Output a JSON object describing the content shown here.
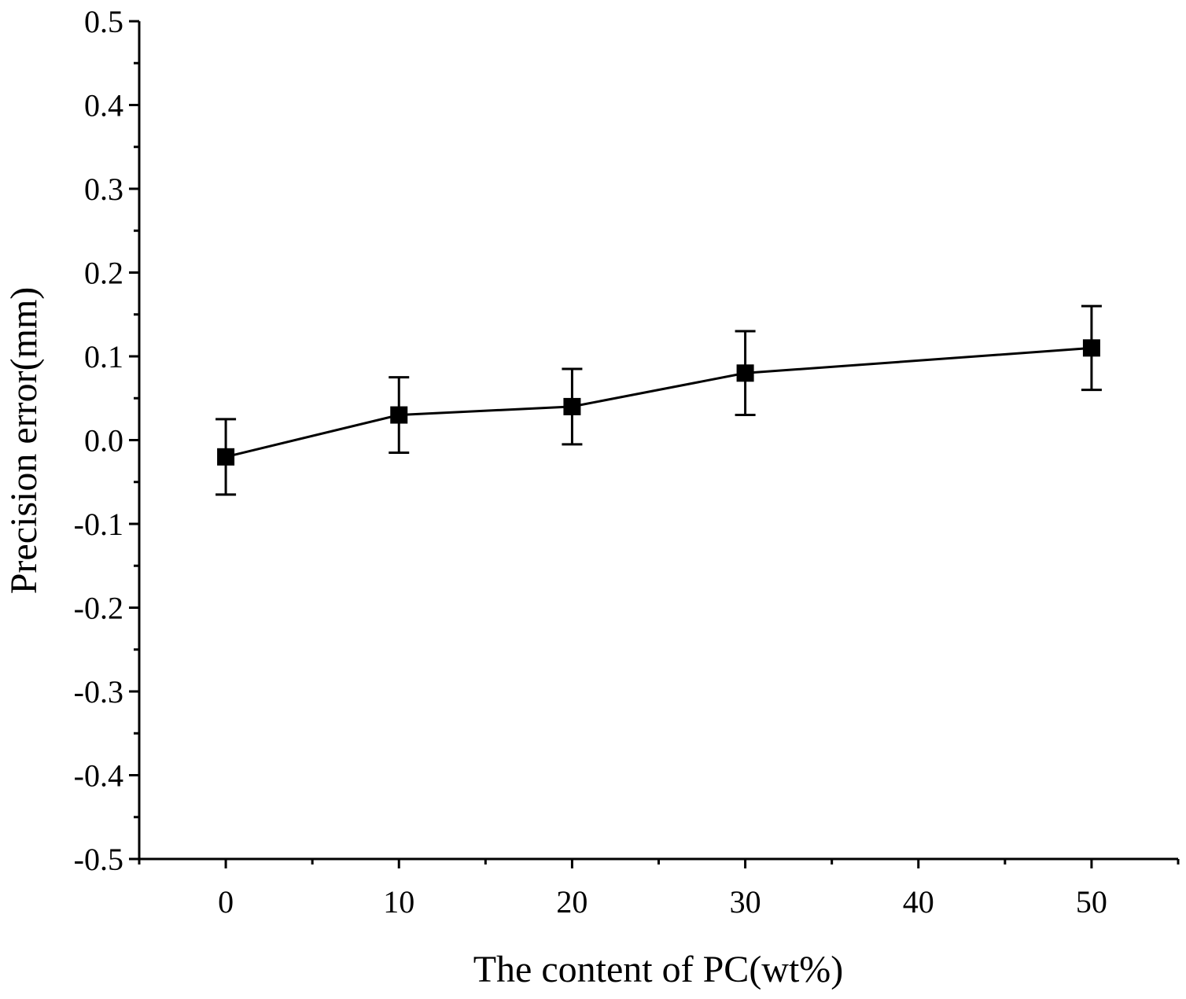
{
  "chart_data": {
    "type": "line",
    "title": "",
    "xlabel": "The content of PC(wt%)",
    "ylabel": "Precision error(mm)",
    "xlim": [
      -5,
      55
    ],
    "ylim": [
      -0.5,
      0.5
    ],
    "x_major_ticks": [
      0,
      10,
      20,
      30,
      40,
      50
    ],
    "x_minor_ticks": [
      -5,
      5,
      15,
      25,
      35,
      45,
      55
    ],
    "x_tick_labels": [
      "0",
      "10",
      "20",
      "30",
      "40",
      "50"
    ],
    "y_major_ticks": [
      -0.5,
      -0.4,
      -0.3,
      -0.2,
      -0.1,
      0.0,
      0.1,
      0.2,
      0.3,
      0.4,
      0.5
    ],
    "y_tick_labels": [
      "-0.5",
      "-0.4",
      "-0.3",
      "-0.2",
      "-0.1",
      "0.0",
      "0.1",
      "0.2",
      "0.3",
      "0.4",
      "0.5"
    ],
    "grid": false,
    "legend": "none",
    "series": [
      {
        "name": "Precision error",
        "x": [
          0,
          10,
          20,
          30,
          50
        ],
        "values": [
          -0.02,
          0.03,
          0.04,
          0.08,
          0.11
        ],
        "error": [
          0.045,
          0.045,
          0.045,
          0.05,
          0.05
        ],
        "marker": "square",
        "color": "#000000"
      }
    ]
  }
}
